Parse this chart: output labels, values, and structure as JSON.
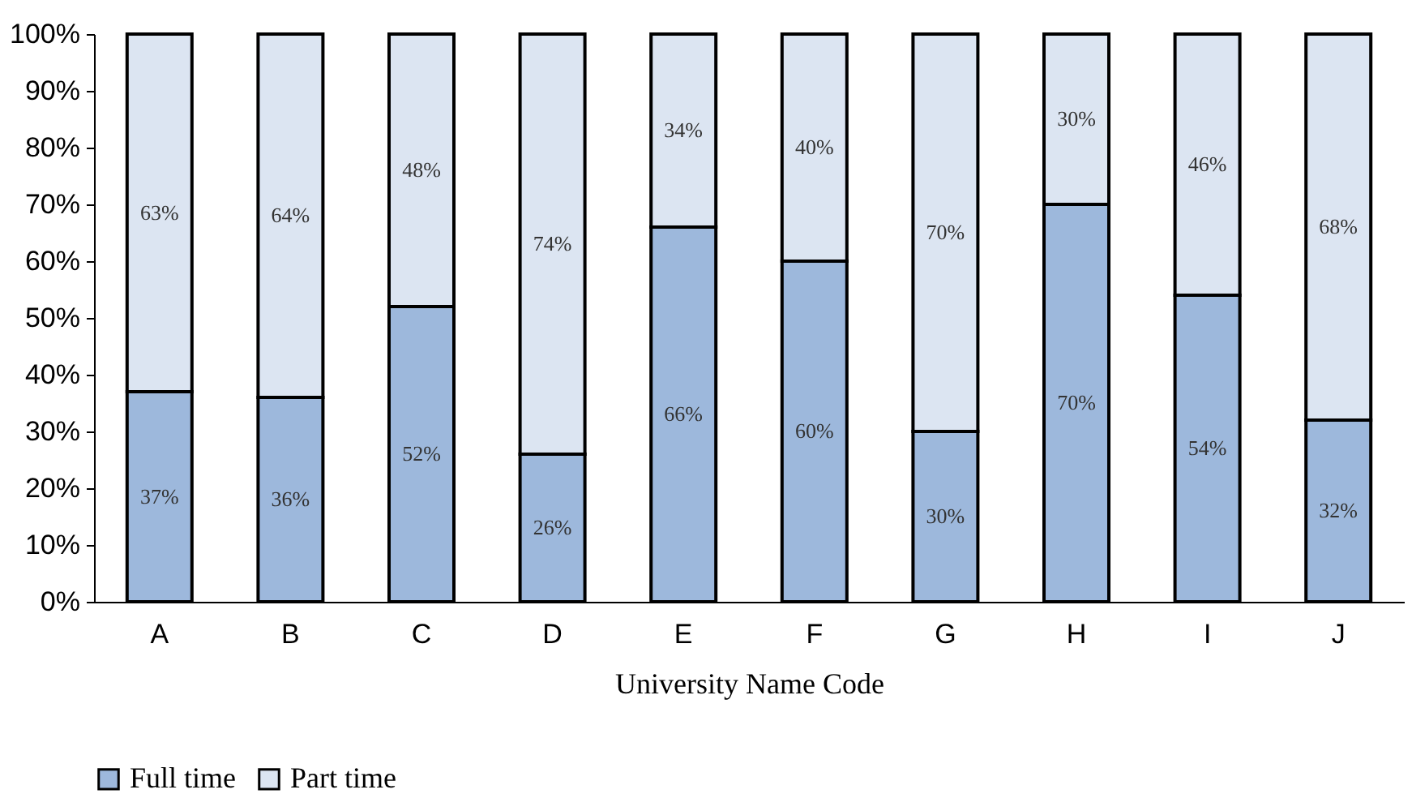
{
  "chart_data": {
    "type": "bar",
    "stacked": true,
    "xlabel": "University Name Code",
    "categories": [
      "A",
      "B",
      "C",
      "D",
      "E",
      "F",
      "G",
      "H",
      "I",
      "J"
    ],
    "series": [
      {
        "name": "Full time",
        "color": "#9db8dc",
        "values": [
          37,
          36,
          52,
          26,
          66,
          60,
          30,
          70,
          54,
          32
        ],
        "value_labels": [
          "37%",
          "36%",
          "52%",
          "26%",
          "66%",
          "60%",
          "30%",
          "70%",
          "54%",
          "32%"
        ]
      },
      {
        "name": "Part time",
        "color": "#dce5f2",
        "values": [
          63,
          64,
          48,
          74,
          34,
          40,
          70,
          30,
          46,
          68
        ],
        "value_labels": [
          "63%",
          "64%",
          "48%",
          "74%",
          "34%",
          "40%",
          "70%",
          "30%",
          "46%",
          "68%"
        ]
      }
    ],
    "ylim": [
      0,
      100
    ],
    "yticks": [
      {
        "value": 0,
        "label": "0%"
      },
      {
        "value": 10,
        "label": "10%"
      },
      {
        "value": 20,
        "label": "20%"
      },
      {
        "value": 30,
        "label": "30%"
      },
      {
        "value": 40,
        "label": "40%"
      },
      {
        "value": 50,
        "label": "50%"
      },
      {
        "value": 60,
        "label": "60%"
      },
      {
        "value": 70,
        "label": "70%"
      },
      {
        "value": 80,
        "label": "80%"
      },
      {
        "value": 90,
        "label": "90%"
      },
      {
        "value": 100,
        "label": "100%"
      }
    ],
    "grid": false,
    "legend": "bottom"
  }
}
